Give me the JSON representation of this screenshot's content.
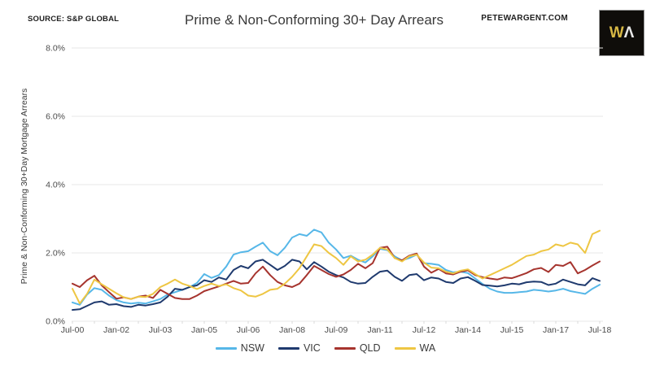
{
  "header": {
    "source": "SOURCE: S&P GLOBAL",
    "website": "PETEWARGENT.COM",
    "logo": {
      "letter_w": "W",
      "letter_a": "Λ"
    }
  },
  "chart_data": {
    "type": "line",
    "title": "Prime & Non-Conforming 30+ Day Arrears",
    "ylabel": "Prime & Non-Conforming 30+Day Mortgage Arrears",
    "xlabel": "",
    "ylim": [
      0,
      8
    ],
    "grid": "horizontal",
    "legend_position": "bottom",
    "y_ticks": [
      {
        "value": 0,
        "label": "0.0%"
      },
      {
        "value": 2,
        "label": "2.0%"
      },
      {
        "value": 4,
        "label": "4.0%"
      },
      {
        "value": 6,
        "label": "6.0%"
      },
      {
        "value": 8,
        "label": "8.0%"
      }
    ],
    "x_range": [
      2000.5,
      2018.5
    ],
    "x_ticks": [
      {
        "t": 2000.5,
        "label": "Jul-00"
      },
      {
        "t": 2002.0,
        "label": "Jan-02"
      },
      {
        "t": 2003.5,
        "label": "Jul-03"
      },
      {
        "t": 2005.0,
        "label": "Jan-05"
      },
      {
        "t": 2006.5,
        "label": "Jul-06"
      },
      {
        "t": 2008.0,
        "label": "Jan-08"
      },
      {
        "t": 2009.5,
        "label": "Jul-09"
      },
      {
        "t": 2011.0,
        "label": "Jan-11"
      },
      {
        "t": 2012.5,
        "label": "Jul-12"
      },
      {
        "t": 2014.0,
        "label": "Jan-14"
      },
      {
        "t": 2015.5,
        "label": "Jul-15"
      },
      {
        "t": 2017.0,
        "label": "Jan-17"
      },
      {
        "t": 2018.5,
        "label": "Jul-18"
      }
    ],
    "x_minor_tick_step": 0.75,
    "x_start": 2000.5,
    "x_step": 0.25,
    "series": [
      {
        "name": "NSW",
        "color": "#56b7e8",
        "values": [
          0.55,
          0.48,
          0.78,
          0.97,
          0.92,
          0.75,
          0.62,
          0.55,
          0.52,
          0.54,
          0.52,
          0.58,
          0.65,
          0.78,
          0.85,
          0.92,
          1.0,
          1.12,
          1.38,
          1.27,
          1.35,
          1.6,
          1.95,
          2.02,
          2.05,
          2.18,
          2.3,
          2.05,
          1.93,
          2.15,
          2.45,
          2.55,
          2.5,
          2.68,
          2.6,
          2.3,
          2.1,
          1.85,
          1.92,
          1.8,
          1.72,
          1.9,
          2.12,
          2.08,
          1.9,
          1.78,
          1.85,
          1.95,
          1.7,
          1.68,
          1.65,
          1.5,
          1.43,
          1.45,
          1.41,
          1.25,
          1.09,
          0.95,
          0.87,
          0.83,
          0.83,
          0.85,
          0.87,
          0.92,
          0.9,
          0.87,
          0.9,
          0.95,
          0.88,
          0.84,
          0.8,
          0.95,
          1.07
        ]
      },
      {
        "name": "VIC",
        "color": "#1f3a6e",
        "values": [
          0.33,
          0.35,
          0.45,
          0.55,
          0.58,
          0.48,
          0.5,
          0.44,
          0.42,
          0.48,
          0.46,
          0.5,
          0.55,
          0.72,
          0.95,
          0.92,
          1.0,
          1.05,
          1.2,
          1.15,
          1.28,
          1.22,
          1.5,
          1.62,
          1.55,
          1.75,
          1.8,
          1.65,
          1.5,
          1.62,
          1.8,
          1.75,
          1.52,
          1.73,
          1.6,
          1.45,
          1.35,
          1.28,
          1.15,
          1.1,
          1.12,
          1.3,
          1.45,
          1.48,
          1.3,
          1.18,
          1.35,
          1.38,
          1.2,
          1.28,
          1.25,
          1.15,
          1.12,
          1.25,
          1.29,
          1.18,
          1.06,
          1.04,
          1.02,
          1.05,
          1.1,
          1.08,
          1.14,
          1.16,
          1.15,
          1.06,
          1.1,
          1.22,
          1.15,
          1.08,
          1.05,
          1.26,
          1.18
        ]
      },
      {
        "name": "QLD",
        "color": "#a6342e",
        "values": [
          1.1,
          1.0,
          1.2,
          1.33,
          1.05,
          0.85,
          0.66,
          0.7,
          0.65,
          0.72,
          0.75,
          0.68,
          0.92,
          0.8,
          0.68,
          0.65,
          0.65,
          0.75,
          0.88,
          0.95,
          1.02,
          1.1,
          1.18,
          1.1,
          1.12,
          1.4,
          1.6,
          1.35,
          1.15,
          1.05,
          1.0,
          1.1,
          1.35,
          1.62,
          1.5,
          1.38,
          1.3,
          1.37,
          1.5,
          1.68,
          1.55,
          1.7,
          2.15,
          2.18,
          1.85,
          1.78,
          1.92,
          1.98,
          1.6,
          1.42,
          1.53,
          1.4,
          1.37,
          1.45,
          1.49,
          1.35,
          1.29,
          1.25,
          1.22,
          1.28,
          1.26,
          1.33,
          1.41,
          1.52,
          1.56,
          1.44,
          1.65,
          1.62,
          1.73,
          1.4,
          1.5,
          1.63,
          1.75
        ]
      },
      {
        "name": "WA",
        "color": "#eec643",
        "values": [
          0.95,
          0.52,
          0.8,
          1.22,
          1.08,
          0.95,
          0.82,
          0.7,
          0.65,
          0.72,
          0.71,
          0.8,
          1.0,
          1.1,
          1.22,
          1.1,
          1.03,
          0.94,
          1.03,
          1.1,
          1.03,
          1.08,
          0.97,
          0.9,
          0.75,
          0.72,
          0.8,
          0.92,
          0.95,
          1.1,
          1.3,
          1.55,
          1.9,
          2.25,
          2.2,
          2.0,
          1.85,
          1.65,
          1.9,
          1.75,
          1.8,
          1.95,
          2.15,
          2.1,
          1.85,
          1.75,
          1.9,
          1.95,
          1.72,
          1.57,
          1.55,
          1.45,
          1.4,
          1.48,
          1.52,
          1.38,
          1.25,
          1.35,
          1.45,
          1.55,
          1.65,
          1.78,
          1.91,
          1.95,
          2.05,
          2.1,
          2.25,
          2.2,
          2.3,
          2.25,
          2.0,
          2.55,
          2.65
        ]
      }
    ],
    "colors": {
      "grid": "#e7e7e7",
      "tick_text": "#4b4b4b",
      "minor_tick": "#d9d9d9"
    }
  }
}
